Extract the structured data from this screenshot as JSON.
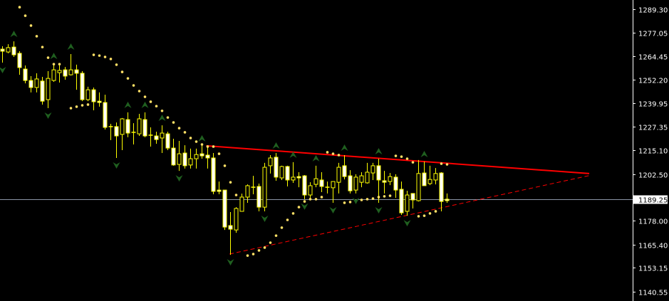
{
  "chart_data": {
    "type": "candlestick",
    "colors": {
      "background": "#000000",
      "candle_outline": "#ffff00",
      "bear_body": "#ffffff",
      "bull_body": "#000000",
      "sar": "#ffe066",
      "fractal": "#1f5f1f",
      "trendline": "#ff0000",
      "bid_line": "#8a94a6",
      "axis": "#ffffff"
    },
    "ylim": [
      1136,
      1293
    ],
    "y_ticks": [
      "1289.30",
      "1277.05",
      "1264.45",
      "1252.20",
      "1239.95",
      "1227.35",
      "1215.10",
      "1202.50",
      "1178.00",
      "1165.40",
      "1153.15",
      "1140.55"
    ],
    "bid": "1189.25",
    "ohlc": [
      [
        1268.3,
        1269.8,
        1261.2,
        1267.2
      ],
      [
        1266.8,
        1270.9,
        1266.1,
        1269.1
      ],
      [
        1269.4,
        1272.4,
        1264.2,
        1265.3
      ],
      [
        1266.1,
        1267.2,
        1254.8,
        1258.6
      ],
      [
        1257.8,
        1259.7,
        1250.3,
        1251.8
      ],
      [
        1251.8,
        1254.1,
        1245.5,
        1248.1
      ],
      [
        1248.1,
        1255.6,
        1245.5,
        1252.6
      ],
      [
        1251.5,
        1253.7,
        1239.1,
        1240.9
      ],
      [
        1241.7,
        1256.7,
        1237.2,
        1252.9
      ],
      [
        1251.8,
        1260.8,
        1251.1,
        1257.4
      ],
      [
        1255.9,
        1259.7,
        1250.7,
        1257.1
      ],
      [
        1257.4,
        1258.9,
        1252.2,
        1254.1
      ],
      [
        1254.8,
        1265.7,
        1254.4,
        1257.4
      ],
      [
        1257.4,
        1260.1,
        1246.9,
        1255.6
      ],
      [
        1255.6,
        1256.7,
        1240.9,
        1241.7
      ],
      [
        1241.7,
        1248.5,
        1240.9,
        1246.9
      ],
      [
        1246.9,
        1248.1,
        1236.1,
        1240.6
      ],
      [
        1240.9,
        1245.5,
        1238.0,
        1240.2
      ],
      [
        1240.2,
        1244.3,
        1226.0,
        1227.1
      ],
      [
        1227.5,
        1229.0,
        1220.4,
        1227.1
      ],
      [
        1227.5,
        1229.7,
        1211.0,
        1222.6
      ],
      [
        1223.4,
        1232.0,
        1215.1,
        1231.6
      ],
      [
        1231.2,
        1235.0,
        1221.9,
        1224.1
      ],
      [
        1224.5,
        1229.3,
        1218.1,
        1224.3
      ],
      [
        1223.7,
        1234.2,
        1222.6,
        1231.6
      ],
      [
        1231.2,
        1235.0,
        1221.9,
        1222.6
      ],
      [
        1223.0,
        1227.1,
        1217.0,
        1222.8
      ],
      [
        1222.6,
        1224.8,
        1218.5,
        1220.7
      ],
      [
        1221.5,
        1228.2,
        1213.6,
        1224.1
      ],
      [
        1223.7,
        1224.8,
        1215.1,
        1216.2
      ],
      [
        1216.2,
        1221.1,
        1206.9,
        1207.3
      ],
      [
        1207.6,
        1220.0,
        1204.2,
        1213.2
      ],
      [
        1213.6,
        1217.7,
        1205.4,
        1206.9
      ],
      [
        1207.3,
        1215.9,
        1205.4,
        1210.6
      ],
      [
        1210.6,
        1215.9,
        1205.4,
        1212.8
      ],
      [
        1213.2,
        1217.4,
        1210.6,
        1212.1
      ],
      [
        1212.5,
        1217.4,
        1205.4,
        1211.0
      ],
      [
        1211.0,
        1213.6,
        1191.9,
        1193.4
      ],
      [
        1194.1,
        1198.6,
        1191.9,
        1193.4
      ],
      [
        1194.1,
        1194.1,
        1173.1,
        1174.6
      ],
      [
        1175.4,
        1182.5,
        1160.0,
        1173.5
      ],
      [
        1173.1,
        1185.1,
        1171.6,
        1184.4
      ],
      [
        1182.9,
        1192.2,
        1182.9,
        1190.4
      ],
      [
        1190.4,
        1197.1,
        1187.4,
        1196.4
      ],
      [
        1195.6,
        1201.6,
        1191.9,
        1195.3
      ],
      [
        1196.0,
        1197.5,
        1182.9,
        1185.1
      ],
      [
        1185.1,
        1208.4,
        1182.9,
        1206.1
      ],
      [
        1206.9,
        1212.5,
        1202.8,
        1211.0
      ],
      [
        1211.4,
        1213.6,
        1199.0,
        1200.9
      ],
      [
        1200.5,
        1206.9,
        1199.4,
        1206.5
      ],
      [
        1206.5,
        1206.9,
        1196.0,
        1199.4
      ],
      [
        1199.4,
        1208.8,
        1197.9,
        1200.9
      ],
      [
        1201.2,
        1203.5,
        1195.6,
        1200.5
      ],
      [
        1201.6,
        1202.0,
        1189.3,
        1191.5
      ],
      [
        1191.5,
        1198.2,
        1190.0,
        1196.4
      ],
      [
        1197.1,
        1206.9,
        1195.6,
        1200.1
      ],
      [
        1199.4,
        1203.5,
        1193.0,
        1196.0
      ],
      [
        1195.6,
        1198.6,
        1192.3,
        1195.3
      ],
      [
        1195.3,
        1198.6,
        1187.4,
        1198.6
      ],
      [
        1198.2,
        1208.4,
        1192.3,
        1206.1
      ],
      [
        1206.9,
        1212.5,
        1199.7,
        1201.2
      ],
      [
        1201.6,
        1204.6,
        1192.3,
        1193.7
      ],
      [
        1194.1,
        1202.4,
        1192.3,
        1200.9
      ],
      [
        1198.2,
        1203.5,
        1195.6,
        1201.6
      ],
      [
        1197.9,
        1208.4,
        1197.5,
        1203.5
      ],
      [
        1203.1,
        1208.4,
        1199.4,
        1206.9
      ],
      [
        1206.9,
        1210.6,
        1187.4,
        1199.4
      ],
      [
        1199.0,
        1204.2,
        1192.3,
        1198.2
      ],
      [
        1198.6,
        1203.1,
        1196.7,
        1201.2
      ],
      [
        1200.9,
        1202.4,
        1190.0,
        1194.1
      ],
      [
        1194.5,
        1198.6,
        1181.0,
        1182.1
      ],
      [
        1182.9,
        1193.7,
        1180.6,
        1191.5
      ],
      [
        1192.3,
        1192.3,
        1184.4,
        1188.9
      ],
      [
        1188.5,
        1209.9,
        1188.1,
        1202.8
      ],
      [
        1203.1,
        1209.1,
        1196.4,
        1196.4
      ],
      [
        1197.5,
        1206.9,
        1196.7,
        1199.7
      ],
      [
        1199.4,
        1205.7,
        1197.1,
        1202.8
      ],
      [
        1203.1,
        1203.5,
        1182.9,
        1188.1
      ],
      [
        1189.3,
        1192.3,
        1187.4,
        1188.5
      ]
    ],
    "parabolic_sar": [
      [
        3,
        1290.4
      ],
      [
        4,
        1285.9
      ],
      [
        5,
        1280.7
      ],
      [
        6,
        1275.1
      ],
      [
        7,
        1269.4
      ],
      [
        8,
        1263.8
      ],
      [
        9,
        1260.4
      ],
      [
        10,
        1260.4
      ],
      [
        12,
        1237.2
      ],
      [
        13,
        1238.0
      ],
      [
        14,
        1238.7
      ],
      [
        15,
        1239.1
      ],
      [
        16,
        1265.3
      ],
      [
        17,
        1264.9
      ],
      [
        18,
        1264.2
      ],
      [
        19,
        1263.1
      ],
      [
        20,
        1260.1
      ],
      [
        21,
        1256.3
      ],
      [
        22,
        1252.9
      ],
      [
        23,
        1249.2
      ],
      [
        24,
        1246.2
      ],
      [
        25,
        1243.2
      ],
      [
        26,
        1240.6
      ],
      [
        27,
        1238.3
      ],
      [
        28,
        1235.8
      ],
      [
        29,
        1232.3
      ],
      [
        30,
        1229.7
      ],
      [
        31,
        1226.7
      ],
      [
        32,
        1224.5
      ],
      [
        33,
        1221.5
      ],
      [
        34,
        1219.6
      ],
      [
        35,
        1218.1
      ],
      [
        36,
        1217.0
      ],
      [
        37,
        1217.0
      ],
      [
        38,
        1213.2
      ],
      [
        39,
        1206.9
      ],
      [
        40,
        1198.2
      ],
      [
        41,
        1191.5
      ],
      [
        43,
        1159.6
      ],
      [
        44,
        1160.4
      ],
      [
        45,
        1162.3
      ],
      [
        46,
        1163.8
      ],
      [
        47,
        1166.4
      ],
      [
        48,
        1170.1
      ],
      [
        49,
        1174.3
      ],
      [
        50,
        1178.4
      ],
      [
        51,
        1181.8
      ],
      [
        52,
        1185.1
      ],
      [
        53,
        1188.1
      ],
      [
        54,
        1189.3
      ],
      [
        55,
        1189.3
      ],
      [
        56,
        1190.4
      ],
      [
        57,
        1214.0
      ],
      [
        58,
        1213.2
      ],
      [
        59,
        1212.5
      ],
      [
        60,
        1187.4
      ],
      [
        61,
        1187.8
      ],
      [
        62,
        1188.5
      ],
      [
        63,
        1188.9
      ],
      [
        64,
        1189.3
      ],
      [
        65,
        1189.6
      ],
      [
        66,
        1190.4
      ],
      [
        67,
        1190.8
      ],
      [
        68,
        1191.1
      ],
      [
        69,
        1212.1
      ],
      [
        70,
        1211.7
      ],
      [
        71,
        1210.6
      ],
      [
        72,
        1208.7
      ],
      [
        73,
        1180.3
      ],
      [
        74,
        1180.6
      ],
      [
        75,
        1181.8
      ],
      [
        76,
        1182.9
      ],
      [
        77,
        1208.0
      ],
      [
        78,
        1207.6
      ]
    ],
    "fractals_up": [
      2,
      9,
      12,
      22,
      25,
      28,
      35,
      48,
      51,
      55,
      60,
      66,
      74
    ],
    "fractals_down": [
      0,
      8,
      20,
      31,
      40,
      46,
      53,
      58,
      62,
      66,
      71
    ],
    "trendlines": [
      {
        "style": "solid",
        "from": [
          35.8,
          1217.4
        ],
        "to": [
          103,
          1202.8
        ]
      },
      {
        "style": "dashed",
        "from": [
          39.9,
          1160.4
        ],
        "to": [
          103.4,
          1202.0
        ]
      }
    ]
  }
}
